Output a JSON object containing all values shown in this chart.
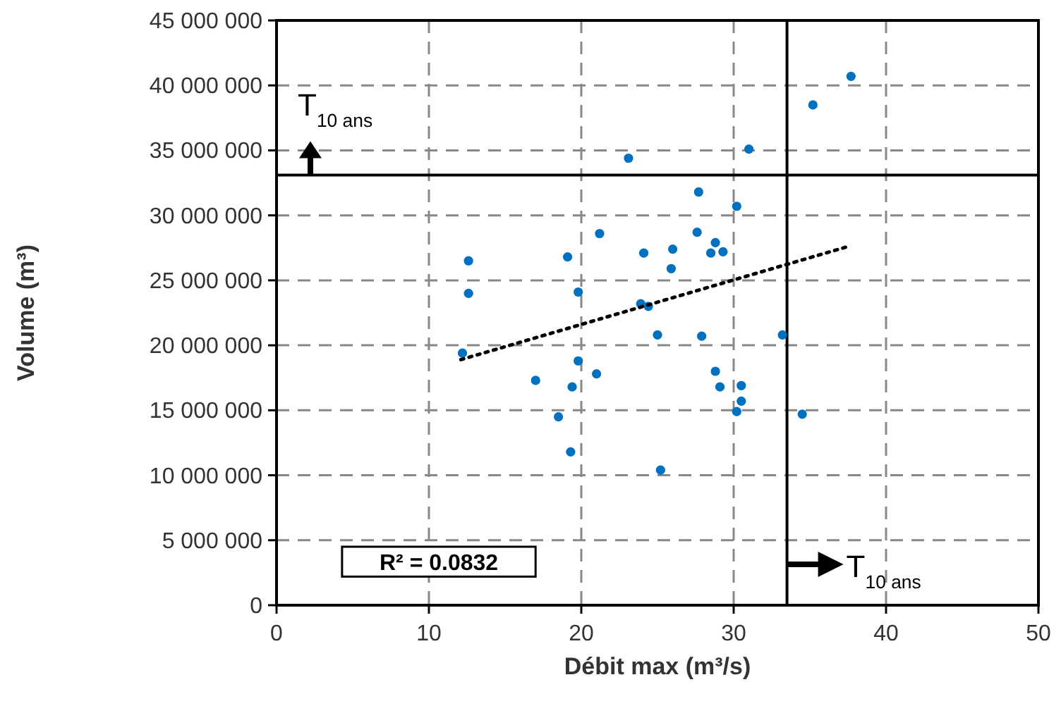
{
  "chart_data": {
    "type": "scatter",
    "xlabel": "Débit max (m³/s)",
    "ylabel": "Volume (m³)",
    "xlim": [
      0,
      50
    ],
    "xticks": [
      0,
      10,
      20,
      30,
      40,
      50
    ],
    "ylim": [
      0,
      45000000
    ],
    "yticks": [
      {
        "value": 0,
        "label": "0"
      },
      {
        "value": 5000000,
        "label": "5 000 000"
      },
      {
        "value": 10000000,
        "label": "10 000 000"
      },
      {
        "value": 15000000,
        "label": "15 000 000"
      },
      {
        "value": 20000000,
        "label": "20 000 000"
      },
      {
        "value": 25000000,
        "label": "25 000 000"
      },
      {
        "value": 30000000,
        "label": "30 000 000"
      },
      {
        "value": 35000000,
        "label": "35 000 000"
      },
      {
        "value": 40000000,
        "label": "40 000 000"
      },
      {
        "value": 45000000,
        "label": "45 000 000"
      }
    ],
    "grid": true,
    "marker": "circle",
    "series": [
      {
        "color": "#0070c0",
        "x": [
          37.7,
          35.2,
          31.0,
          23.1,
          27.7,
          30.2,
          21.2,
          19.1,
          27.6,
          24.1,
          26.0,
          25.9,
          28.8,
          28.5,
          29.3,
          19.8,
          23.9,
          24.4,
          25.0,
          27.9,
          33.2,
          19.8,
          21.0,
          19.4,
          28.8,
          29.1,
          30.5,
          30.5,
          30.2,
          34.5,
          19.3,
          25.2,
          12.6,
          12.6,
          12.2,
          17.0,
          18.5
        ],
        "values": [
          40700000,
          38500000,
          35100000,
          34400000,
          31800000,
          30700000,
          28600000,
          26800000,
          28700000,
          27100000,
          27400000,
          25900000,
          27900000,
          27100000,
          27200000,
          24100000,
          23200000,
          23000000,
          20800000,
          20700000,
          20800000,
          18800000,
          17800000,
          16800000,
          18000000,
          16800000,
          16900000,
          15700000,
          14900000,
          14700000,
          11800000,
          10400000,
          26500000,
          24000000,
          19400000,
          17300000,
          14500000
        ]
      },
      {
        "type": "line",
        "color": "#000000",
        "line_style": "dotted",
        "marker": "none",
        "x": [
          12.1,
          37.5
        ],
        "values": [
          18900000,
          27600000
        ]
      }
    ],
    "ref_lines": [
      {
        "axis": "y",
        "value": 33100000,
        "label": "T$_{10 ans}$",
        "color": "#000000",
        "line_style": "solid"
      },
      {
        "axis": "x",
        "value": 33.5,
        "label": "T$_{10 ans}$",
        "color": "#000000",
        "line_style": "solid"
      }
    ],
    "annotations": [
      "R² = 0.0832"
    ]
  }
}
